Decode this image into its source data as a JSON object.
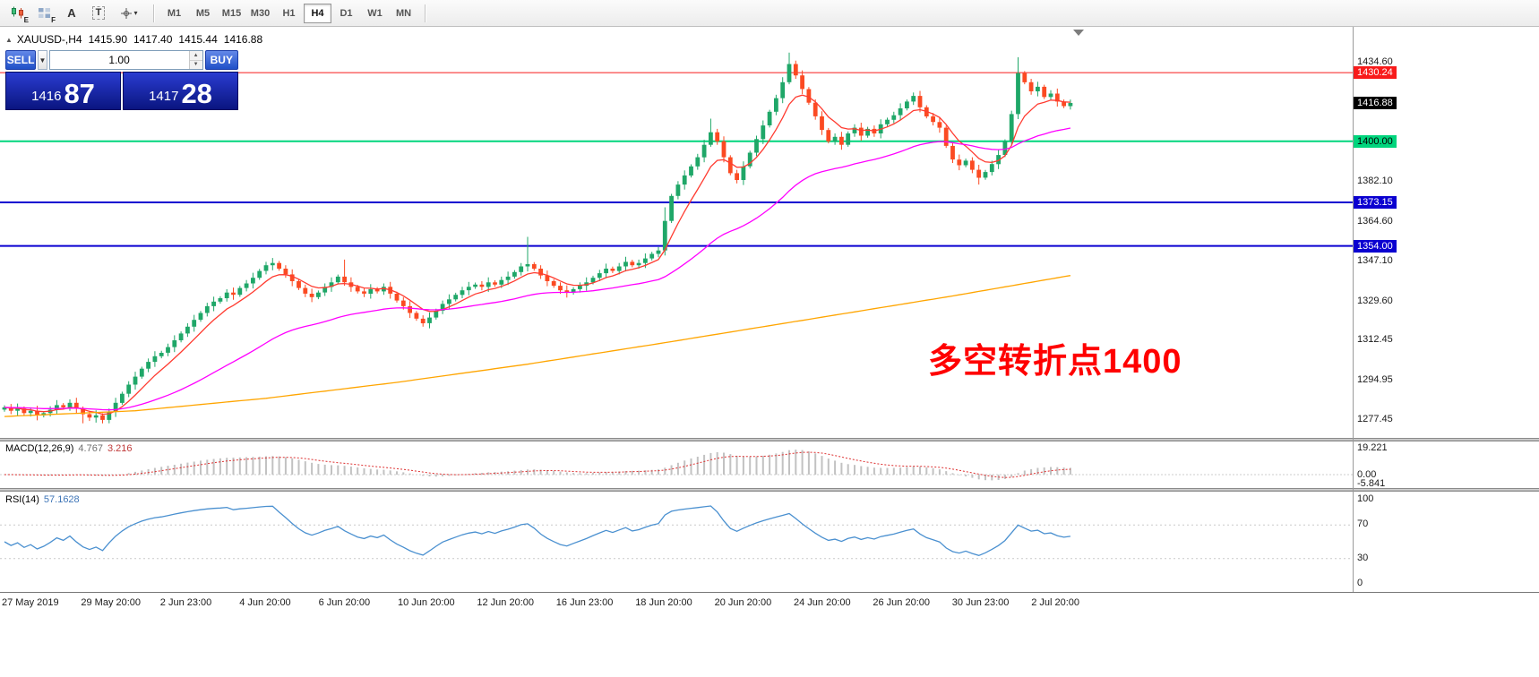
{
  "toolbar": {
    "tools": [
      {
        "label": "E"
      },
      {
        "label": "F"
      },
      {
        "label": "A"
      },
      {
        "label": "T"
      },
      {
        "label": "▾"
      }
    ],
    "timeframes": [
      "M1",
      "M5",
      "M15",
      "M30",
      "H1",
      "H4",
      "D1",
      "W1",
      "MN"
    ],
    "active_timeframe": "H4"
  },
  "chart": {
    "symbol_header": "XAUUSD-,H4",
    "ohlc": {
      "open": "1415.90",
      "high": "1417.40",
      "low": "1415.44",
      "close": "1416.88"
    }
  },
  "trade_panel": {
    "sell_label": "SELL",
    "buy_label": "BUY",
    "volume": "1.00",
    "sell_price_small": "1416",
    "sell_price_big": "87",
    "buy_price_small": "1417",
    "buy_price_big": "28"
  },
  "annotation": {
    "text": "多空转折点1400",
    "color": "#ff0000"
  },
  "macd_panel": {
    "label": "MACD(12,26,9)",
    "value_main": "4.767",
    "value_signal": "3.216",
    "scale": [
      "19.221",
      "0.00",
      "-5.841"
    ]
  },
  "rsi_panel": {
    "label": "RSI(14)",
    "value": "57.1628",
    "scale": [
      "100",
      "70",
      "30",
      "0"
    ]
  },
  "price_axis": {
    "badges": [
      {
        "value": "1430.24",
        "price": 1430.24,
        "bg": "#f81b1b",
        "fg": "#ffffff",
        "type": "resistance"
      },
      {
        "value": "1416.88",
        "price": 1416.88,
        "bg": "#000000",
        "fg": "#ffffff",
        "type": "current-price"
      },
      {
        "value": "1400.00",
        "price": 1400.0,
        "bg": "#00d57d",
        "fg": "#000000",
        "type": "pivot"
      },
      {
        "value": "1373.15",
        "price": 1373.15,
        "bg": "#0b00d0",
        "fg": "#ffffff",
        "type": "support"
      },
      {
        "value": "1354.00",
        "price": 1354.0,
        "bg": "#0b00d0",
        "fg": "#ffffff",
        "type": "support"
      }
    ]
  },
  "chart_data": {
    "type": "candlestick",
    "symbol": "XAUUSD-",
    "timeframe": "H4",
    "title": "XAUUSD-,H4",
    "ylim": [
      1269.5,
      1450.5
    ],
    "y_tick_labels": [
      "1434.60",
      "1382.10",
      "1364.60",
      "1347.10",
      "1329.60",
      "1312.45",
      "1294.95",
      "1277.45"
    ],
    "x_tick_labels": [
      "27 May 2019",
      "29 May 20:00",
      "2 Jun 23:00",
      "4 Jun 20:00",
      "6 Jun 20:00",
      "10 Jun 20:00",
      "12 Jun 20:00",
      "16 Jun 23:00",
      "18 Jun 20:00",
      "20 Jun 20:00",
      "24 Jun 20:00",
      "26 Jun 20:00",
      "30 Jun 23:00",
      "2 Jul 20:00"
    ],
    "first_open": 1282,
    "closes": [
      1283,
      1281.5,
      1282.5,
      1280.5,
      1281.5,
      1279.5,
      1280.5,
      1282,
      1284,
      1283,
      1285,
      1282.5,
      1280,
      1278.5,
      1279.5,
      1277.5,
      1281,
      1285,
      1289,
      1293,
      1296.5,
      1300,
      1303,
      1305.5,
      1307,
      1309.5,
      1312.5,
      1315.5,
      1318.5,
      1321.5,
      1324.5,
      1327.5,
      1329.5,
      1331,
      1333.5,
      1332.5,
      1335.5,
      1337.5,
      1340,
      1343,
      1345.5,
      1346.5,
      1344,
      1341.5,
      1338.5,
      1335.5,
      1333,
      1331.5,
      1333.5,
      1336,
      1338,
      1340.5,
      1338,
      1336,
      1334,
      1333,
      1335,
      1334,
      1336,
      1333,
      1330,
      1327.5,
      1324.5,
      1322,
      1320,
      1322.5,
      1325.5,
      1328.5,
      1330.5,
      1332.5,
      1334.5,
      1336,
      1337,
      1336,
      1338,
      1337,
      1339,
      1340.5,
      1342.5,
      1345,
      1346,
      1344,
      1341,
      1338.5,
      1336.5,
      1334.5,
      1333.5,
      1335,
      1336.5,
      1338,
      1340,
      1342,
      1344,
      1343,
      1345,
      1347,
      1345.5,
      1346.5,
      1348.5,
      1350.5,
      1352,
      1365,
      1376,
      1381,
      1385,
      1389,
      1393,
      1398.5,
      1404,
      1400,
      1393,
      1386,
      1383,
      1389,
      1395,
      1401,
      1407,
      1413,
      1419,
      1426,
      1434,
      1429,
      1423,
      1417,
      1411,
      1405,
      1400,
      1402,
      1398.5,
      1403.5,
      1406,
      1402.5,
      1405.5,
      1403.5,
      1407.5,
      1409.5,
      1411.5,
      1414.5,
      1417.5,
      1420,
      1415,
      1411,
      1408.5,
      1406,
      1398,
      1392,
      1389.5,
      1391.5,
      1387.5,
      1384,
      1386.5,
      1390,
      1394,
      1400,
      1412,
      1430,
      1426,
      1422,
      1424,
      1419.5,
      1421,
      1417.5,
      1415.5,
      1416.88
    ],
    "spikes": [
      {
        "i": 12,
        "low": 1276
      },
      {
        "i": 15,
        "low": 1276
      },
      {
        "i": 52,
        "high": 1348
      },
      {
        "i": 80,
        "high": 1358
      },
      {
        "i": 101,
        "high": 1371
      },
      {
        "i": 108,
        "high": 1410
      },
      {
        "i": 120,
        "high": 1439
      },
      {
        "i": 149,
        "low": 1381
      },
      {
        "i": 155,
        "high": 1437
      }
    ],
    "colors": {
      "up": "#1fa768",
      "down": "#fb4a22"
    },
    "moving_averages": [
      {
        "name": "fast",
        "period": 7,
        "color": "#ff3b30"
      },
      {
        "name": "medium",
        "period": 40,
        "color": "#ff00ff"
      },
      {
        "name": "slow",
        "color": "#ffa500",
        "points": [
          [
            0,
            1279
          ],
          [
            20,
            1281.5
          ],
          [
            40,
            1287
          ],
          [
            60,
            1294
          ],
          [
            80,
            1302
          ],
          [
            100,
            1311
          ],
          [
            115,
            1318
          ],
          [
            130,
            1325
          ],
          [
            145,
            1332
          ],
          [
            163,
            1341
          ]
        ]
      }
    ],
    "horizontal_lines": [
      {
        "price": 1430.24,
        "color": "#f81b1b",
        "width": 1
      },
      {
        "price": 1400.0,
        "color": "#00d57d",
        "width": 2
      },
      {
        "price": 1373.15,
        "color": "#0b00d0",
        "width": 2
      },
      {
        "price": 1354.0,
        "color": "#0b00d0",
        "width": 2
      }
    ],
    "indicators": {
      "macd": {
        "fast": 12,
        "slow": 26,
        "signal": 9,
        "current_main": 4.767,
        "current_signal": 3.216,
        "scale_max": 19.221,
        "scale_min": -5.841
      },
      "rsi": {
        "period": 14,
        "current": 57.1628,
        "levels": [
          70,
          30
        ]
      }
    }
  }
}
